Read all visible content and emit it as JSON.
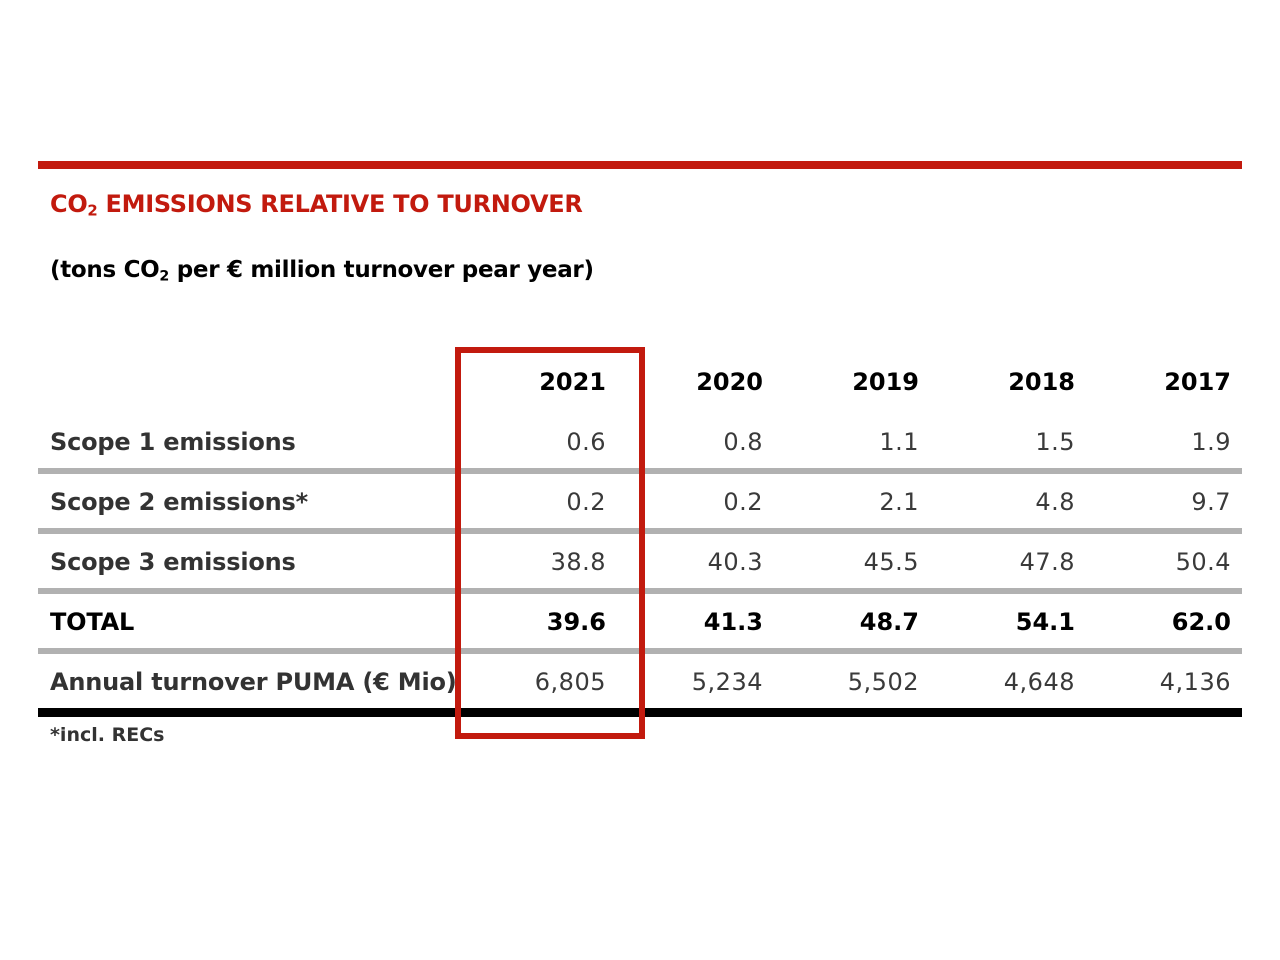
{
  "title": {
    "prefix": "CO",
    "sub": "2",
    "rest": " EMISSIONS RELATIVE TO TURNOVER"
  },
  "subtitle": {
    "prefix": "(tons CO",
    "sub": "2",
    "rest": " per € million turnover pear year)"
  },
  "colors": {
    "accent": "#c21a0e",
    "separator": "#b1b1b1",
    "rule": "#000000"
  },
  "table": {
    "years": [
      "2021",
      "2020",
      "2019",
      "2018",
      "2017"
    ],
    "rows": [
      {
        "label": "Scope 1 emissions",
        "values": [
          "0.6",
          "0.8",
          "1.1",
          "1.5",
          "1.9"
        ],
        "bold": false
      },
      {
        "label": "Scope 2 emissions*",
        "values": [
          "0.2",
          "0.2",
          "2.1",
          "4.8",
          "9.7"
        ],
        "bold": false
      },
      {
        "label": "Scope 3 emissions",
        "values": [
          "38.8",
          "40.3",
          "45.5",
          "47.8",
          "50.4"
        ],
        "bold": false
      },
      {
        "label": "TOTAL",
        "values": [
          "39.6",
          "41.3",
          "48.7",
          "54.1",
          "62.0"
        ],
        "bold": true
      },
      {
        "label": "Annual turnover PUMA (€ Mio)",
        "values": [
          "6,805",
          "5,234",
          "5,502",
          "4,648",
          "4,136"
        ],
        "bold": false
      }
    ]
  },
  "highlighted_year": "2021",
  "footnote": "*incl. RECs"
}
